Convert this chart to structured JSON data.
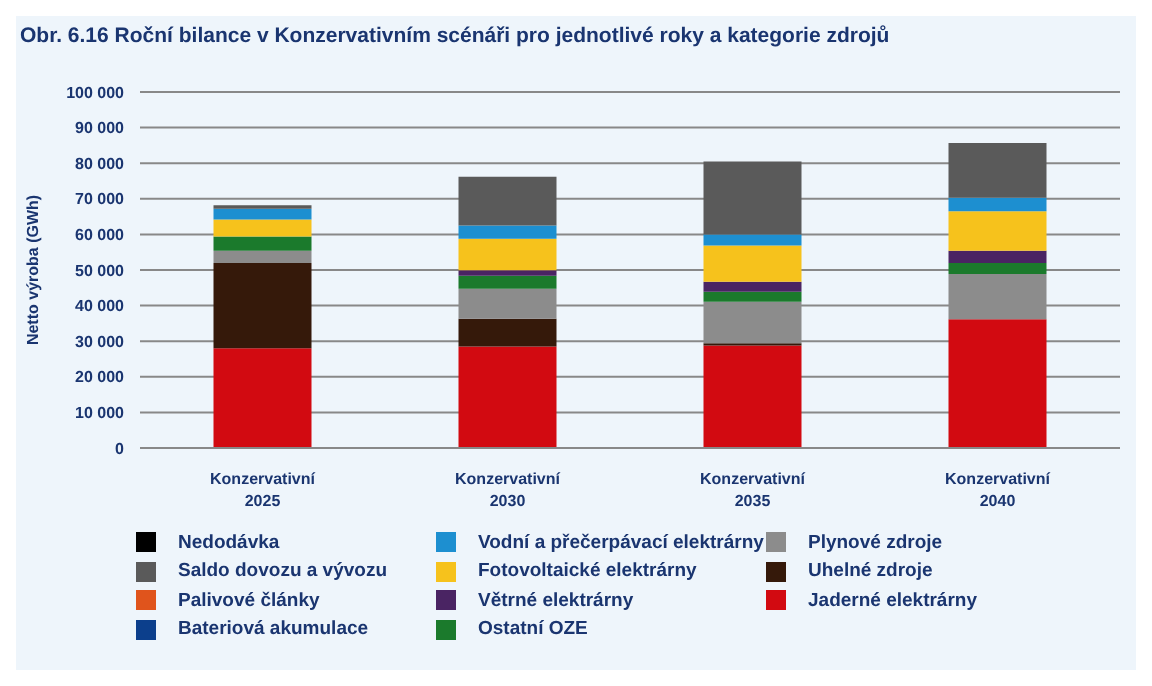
{
  "chart_data": {
    "type": "bar",
    "stacked": true,
    "title": "Obr. 6.16 Roční bilance v Konzervativním scénáři pro jednotlivé roky a kategorie zdrojů",
    "ylabel": "Netto výroba (GWh)",
    "categories": [
      "Konzervativní 2025",
      "Konzervativní 2030",
      "Konzervativní 2035",
      "Konzervativní 2040"
    ],
    "series": [
      {
        "name": "Jaderné elektrárny",
        "color": "#d20a11",
        "values": [
          28000,
          28500,
          28800,
          36200
        ]
      },
      {
        "name": "Uhelné zdroje",
        "color": "#35190a",
        "values": [
          24000,
          7800,
          600,
          0
        ]
      },
      {
        "name": "Plynové zdroje",
        "color": "#8c8c8c",
        "values": [
          3400,
          8400,
          11700,
          12700
        ]
      },
      {
        "name": "Ostatní OZE",
        "color": "#1b7a2c",
        "values": [
          4000,
          3700,
          2800,
          3100
        ]
      },
      {
        "name": "Větrné elektrárny",
        "color": "#4a2463",
        "values": [
          0,
          1500,
          2800,
          3400
        ]
      },
      {
        "name": "Fotovoltaické elektrárny",
        "color": "#f6c21c",
        "values": [
          4800,
          8900,
          10200,
          11100
        ]
      },
      {
        "name": "Vodní a přečerpávací elektrárny",
        "color": "#1d8fd0",
        "values": [
          3000,
          3700,
          3100,
          3800
        ]
      },
      {
        "name": "Bateriová akumulace",
        "color": "#0c3f8c",
        "values": [
          0,
          0,
          0,
          0
        ]
      },
      {
        "name": "Palivové články",
        "color": "#e0541c",
        "values": [
          0,
          0,
          0,
          0
        ]
      },
      {
        "name": "Saldo dovozu a vývozu",
        "color": "#5a5a5a",
        "values": [
          1000,
          13700,
          20500,
          15400
        ]
      },
      {
        "name": "Nedodávka",
        "color": "#000000",
        "values": [
          0,
          0,
          0,
          0
        ]
      }
    ],
    "ylim": [
      0,
      100000
    ],
    "yticks": [
      {
        "value": 0,
        "label": "0"
      },
      {
        "value": 10000,
        "label": "10 000"
      },
      {
        "value": 20000,
        "label": "20 000"
      },
      {
        "value": 30000,
        "label": "30 000"
      },
      {
        "value": 40000,
        "label": "40 000"
      },
      {
        "value": 50000,
        "label": "50 000"
      },
      {
        "value": 60000,
        "label": "60 000"
      },
      {
        "value": 70000,
        "label": "70 000"
      },
      {
        "value": 80000,
        "label": "80 000"
      },
      {
        "value": 90000,
        "label": "90 000"
      },
      {
        "value": 100000,
        "label": "100 000"
      }
    ],
    "grid": "y",
    "legend": "bottom"
  }
}
